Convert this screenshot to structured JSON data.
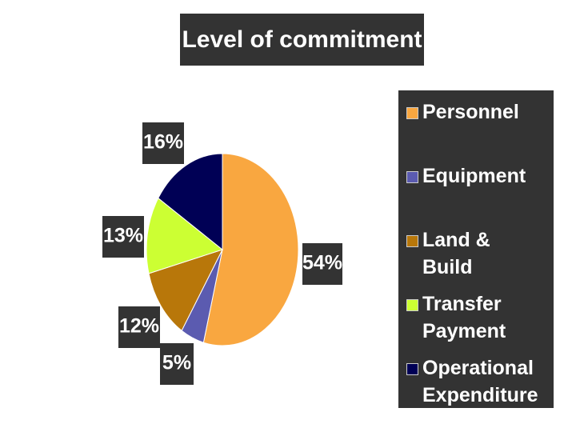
{
  "chart_data": {
    "type": "pie",
    "title": "Level of commitment",
    "categories": [
      "Personnel",
      "Equipment",
      "Land &  Build",
      "Transfer Payment",
      "Operational Expenditure"
    ],
    "values": [
      54,
      5,
      12,
      13,
      16
    ],
    "value_labels": [
      "54%",
      "5%",
      "12%",
      "13%",
      "16%"
    ],
    "colors": [
      "#f9a740",
      "#5b5bb0",
      "#b8770a",
      "#ccff33",
      "#000055"
    ],
    "legend": "right"
  }
}
